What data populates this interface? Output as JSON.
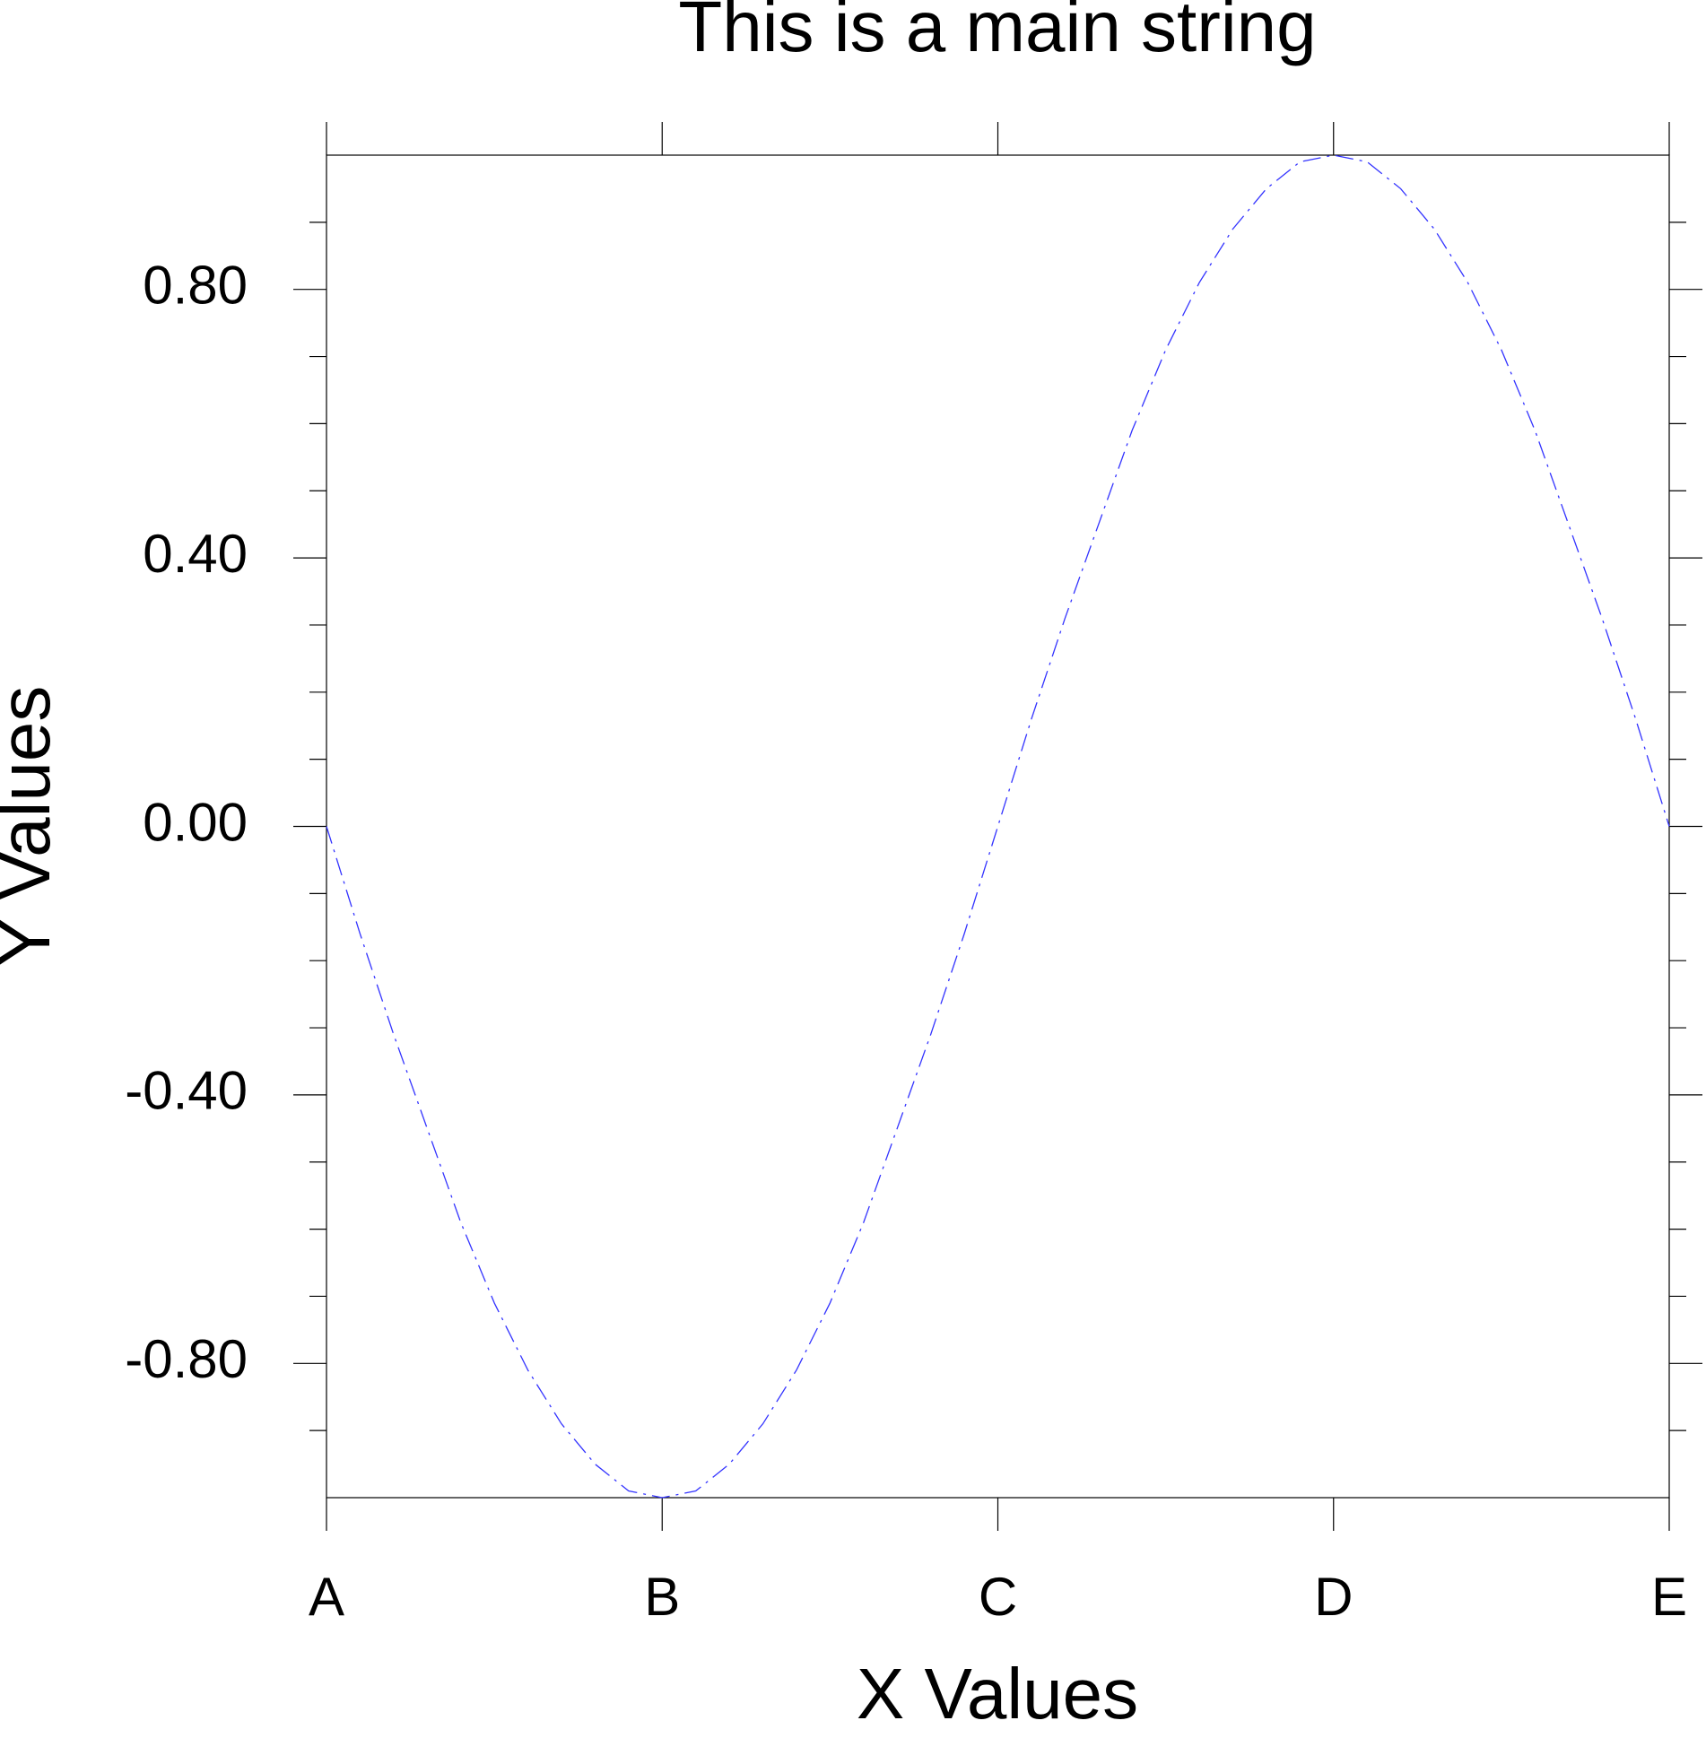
{
  "chart_data": {
    "type": "line",
    "title": "This is a main string",
    "x_label": "X Values",
    "y_label": "Y Values",
    "x": [
      0,
      0.1,
      0.2,
      0.3,
      0.4,
      0.5,
      0.6,
      0.7,
      0.8,
      0.9,
      1,
      1.1,
      1.2,
      1.3,
      1.4,
      1.5,
      1.6,
      1.7,
      1.8,
      1.9,
      2,
      2.1,
      2.2,
      2.3,
      2.4,
      2.5,
      2.6,
      2.7,
      2.8,
      2.9,
      3,
      3.1,
      3.2,
      3.3,
      3.4,
      3.5,
      3.6,
      3.7,
      3.8,
      3.9,
      4
    ],
    "values": [
      0,
      -0.16,
      -0.31,
      -0.45,
      -0.59,
      -0.71,
      -0.81,
      -0.89,
      -0.95,
      -0.99,
      -1,
      -0.99,
      -0.95,
      -0.89,
      -0.81,
      -0.71,
      -0.59,
      -0.45,
      -0.31,
      -0.16,
      0,
      0.16,
      0.31,
      0.45,
      0.59,
      0.71,
      0.81,
      0.89,
      0.95,
      0.99,
      1,
      0.99,
      0.95,
      0.89,
      0.81,
      0.71,
      0.59,
      0.45,
      0.31,
      0.16,
      0
    ],
    "color": "#3333ff",
    "line_style": "dash-dot",
    "xlim": [
      0,
      4
    ],
    "xticks": [
      {
        "value": 0,
        "label": "A"
      },
      {
        "value": 1,
        "label": "B"
      },
      {
        "value": 2,
        "label": "C"
      },
      {
        "value": 3,
        "label": "D"
      },
      {
        "value": 4,
        "label": "E"
      }
    ],
    "ylim": [
      -1,
      1
    ],
    "yticks": [
      {
        "value": -0.8,
        "label": "-0.80"
      },
      {
        "value": -0.4,
        "label": "-0.40"
      },
      {
        "value": 0,
        "label": "0.00"
      },
      {
        "value": 0.4,
        "label": "0.40"
      },
      {
        "value": 0.8,
        "label": "0.80"
      }
    ],
    "yminorticks": [
      -0.9,
      -0.7,
      -0.6,
      -0.5,
      -0.3,
      -0.2,
      -0.1,
      0.1,
      0.2,
      0.3,
      0.5,
      0.6,
      0.7,
      0.9
    ],
    "grid": false
  }
}
